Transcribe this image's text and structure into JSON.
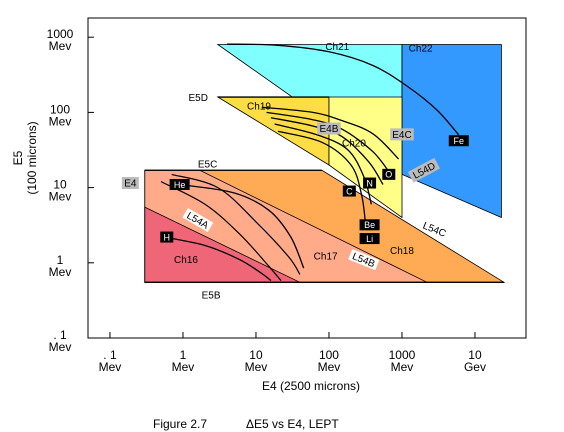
{
  "chart_data": {
    "type": "area",
    "caption": {
      "figure": "Figure 2.7",
      "title": "ΔE5  vs  E4, LEPT"
    },
    "xlabel": "E4 (2500 microns)",
    "ylabel": "E5",
    "ylabel_sub": "(100 microns)",
    "xscale": "log",
    "yscale": "log",
    "xlim_mev": [
      0.05,
      50000
    ],
    "ylim_mev": [
      0.1,
      1800
    ],
    "x_ticks": [
      {
        "value": 0.1,
        "line1": ". 1",
        "line2": "Mev"
      },
      {
        "value": 1,
        "line1": "1",
        "line2": "Mev"
      },
      {
        "value": 10,
        "line1": "10",
        "line2": "Mev"
      },
      {
        "value": 100,
        "line1": "100",
        "line2": "Mev"
      },
      {
        "value": 1000,
        "line1": "1000",
        "line2": "Mev"
      },
      {
        "value": 10000,
        "line1": "10",
        "line2": "Gev"
      }
    ],
    "y_ticks": [
      {
        "value": 1000,
        "line1": "1000",
        "line2": "Mev"
      },
      {
        "value": 100,
        "line1": "100",
        "line2": "Mev"
      },
      {
        "value": 10,
        "line1": "10",
        "line2": "Mev"
      },
      {
        "value": 1,
        "line1": "1",
        "line2": "Mev"
      },
      {
        "value": 0.1,
        "line1": ". 1",
        "line2": "Mev"
      }
    ],
    "regions": [
      {
        "name": "Ch21",
        "color": "#80ffff",
        "label_at": [
          130,
          680
        ],
        "polygon": [
          [
            3,
            800
          ],
          [
            1000,
            800
          ],
          [
            1000,
            15
          ]
        ]
      },
      {
        "name": "Ch22",
        "color": "#3399ff",
        "label_at": [
          1800,
          650
        ],
        "polygon": [
          [
            1000,
            800
          ],
          [
            23000,
            800
          ],
          [
            23000,
            4
          ],
          [
            1000,
            15
          ]
        ]
      },
      {
        "name": "Ch19",
        "color": "#ffdd44",
        "label_at": [
          11,
          110
        ],
        "polygon": [
          [
            3,
            160
          ],
          [
            100,
            160
          ],
          [
            100,
            20
          ]
        ]
      },
      {
        "name": "Ch20",
        "color": "#ffff88",
        "label_at": [
          220,
          35
        ],
        "polygon": [
          [
            100,
            160
          ],
          [
            1000,
            160
          ],
          [
            1000,
            4
          ],
          [
            100,
            20
          ]
        ]
      },
      {
        "name": "Ch18",
        "color": "#ffaa55",
        "label_at": [
          1000,
          1.3
        ],
        "polygon": [
          [
            0.3,
            17
          ],
          [
            80,
            17
          ],
          [
            25000,
            0.55
          ],
          [
            0.3,
            0.55
          ]
        ]
      },
      {
        "name": "Ch17",
        "color": "#ffaa88",
        "label_at": [
          90,
          1.1
        ],
        "polygon": [
          [
            0.3,
            17
          ],
          [
            1.7,
            17
          ],
          [
            2200,
            0.55
          ],
          [
            0.3,
            0.55
          ]
        ]
      },
      {
        "name": "Ch16",
        "color": "#ee6677",
        "label_at": [
          1.1,
          1.0
        ],
        "polygon": [
          [
            0.3,
            5.5
          ],
          [
            0.3,
            0.55
          ],
          [
            40,
            0.55
          ]
        ]
      }
    ],
    "boundary_lines": [
      {
        "name": "E5C",
        "points": [
          [
            0.3,
            17
          ],
          [
            80,
            17
          ]
        ],
        "label_at": [
          1.6,
          21
        ]
      },
      {
        "name": "E5B",
        "points": [
          [
            0.3,
            0.55
          ],
          [
            25000,
            0.55
          ]
        ],
        "label_at": [
          1.8,
          0.38
        ]
      },
      {
        "name": "E5D",
        "points": [
          [
            3,
            160
          ],
          [
            100,
            160
          ]
        ],
        "label_at": [
          2.2,
          160
        ]
      }
    ],
    "boxed_labels": [
      {
        "name": "E4",
        "at": [
          0.19,
          11.5
        ]
      },
      {
        "name": "E4B",
        "at": [
          100,
          61
        ]
      },
      {
        "name": "E4C",
        "at": [
          1000,
          51
        ]
      },
      {
        "name": "L54D",
        "at": [
          2000,
          17
        ],
        "angle": -28
      }
    ],
    "diagonal_labels": [
      {
        "name": "L54A",
        "at": [
          1.6,
          3.7
        ],
        "angle": 30
      },
      {
        "name": "L54B",
        "at": [
          300,
          1.1
        ],
        "angle": 22
      },
      {
        "name": "L54C",
        "at": [
          2800,
          2.8
        ],
        "angle": 22
      }
    ],
    "particle_tracks": [
      {
        "name": "Fe",
        "label_at": [
          6000,
          42
        ],
        "points": [
          [
            4,
            810
          ],
          [
            20,
            780
          ],
          [
            100,
            640
          ],
          [
            400,
            420
          ],
          [
            1200,
            220
          ],
          [
            3000,
            108
          ],
          [
            6000,
            50
          ]
        ]
      },
      {
        "name": "O",
        "label_at": [
          660,
          15
        ],
        "points": [
          [
            12,
            117
          ],
          [
            60,
            100
          ],
          [
            150,
            78
          ],
          [
            400,
            52
          ],
          [
            900,
            24
          ]
        ]
      },
      {
        "name": "N",
        "label_at": [
          360,
          11.5
        ],
        "points": [
          [
            14,
            100
          ],
          [
            60,
            80
          ],
          [
            150,
            60
          ],
          [
            400,
            30
          ],
          [
            700,
            15
          ]
        ]
      },
      {
        "name": "C",
        "label_at": [
          190,
          9
        ],
        "points": [
          [
            16,
            85
          ],
          [
            60,
            66
          ],
          [
            150,
            48
          ],
          [
            350,
            22
          ],
          [
            550,
            11
          ]
        ]
      },
      {
        "name": "Be",
        "label_at": [
          360,
          3.2
        ],
        "points": [
          [
            18,
            70
          ],
          [
            70,
            50
          ],
          [
            180,
            32
          ],
          [
            300,
            14
          ],
          [
            380,
            6
          ]
        ]
      },
      {
        "name": "Li",
        "label_at": [
          360,
          2.1
        ],
        "points": [
          [
            20,
            56
          ],
          [
            80,
            40
          ],
          [
            200,
            20
          ],
          [
            280,
            8
          ],
          [
            320,
            3
          ]
        ]
      },
      {
        "name": "He",
        "label_at": [
          0.9,
          11
        ],
        "points": [
          [
            0.9,
            11
          ],
          [
            5,
            8.5
          ],
          [
            15,
            5
          ],
          [
            30,
            2.2
          ],
          [
            45,
            0.85
          ]
        ]
      },
      {
        "name": "H",
        "label_at": [
          0.6,
          2.2
        ],
        "points": [
          [
            0.55,
            2.2
          ],
          [
            2,
            1.7
          ],
          [
            6,
            1.1
          ],
          [
            12,
            0.72
          ],
          [
            16,
            0.58
          ]
        ]
      }
    ],
    "extra_lines": [
      {
        "points": [
          [
            0.7,
            15
          ],
          [
            3,
            10
          ],
          [
            10,
            3.5
          ],
          [
            28,
            1.2
          ],
          [
            40,
            0.7
          ]
        ]
      },
      {
        "points": [
          [
            0.5,
            12
          ],
          [
            2,
            6
          ],
          [
            6,
            2.4
          ],
          [
            15,
            0.9
          ],
          [
            22,
            0.58
          ]
        ]
      }
    ],
    "colors": {
      "border": "#000000",
      "badge": "#000000",
      "boxed": "#bbbbbb"
    }
  }
}
